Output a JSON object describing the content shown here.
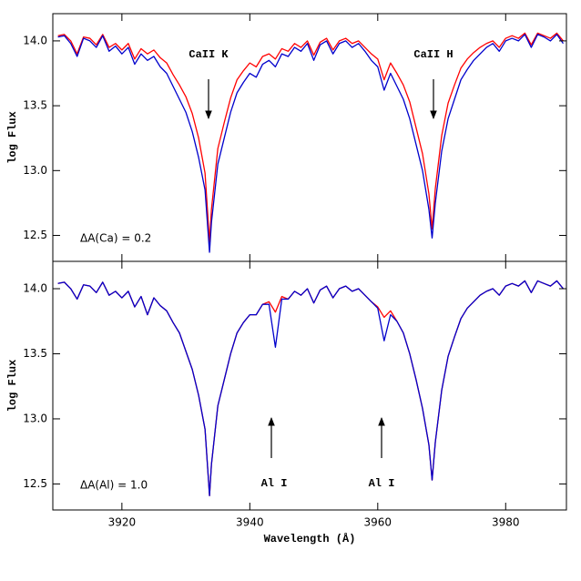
{
  "chart_data": [
    {
      "type": "line",
      "ylabel": "log Flux",
      "annotations": [
        "CaII K",
        "CaII H",
        "ΔA(Ca) = 0.2"
      ],
      "x": [
        3910,
        3911,
        3912,
        3913,
        3914,
        3915,
        3916,
        3917,
        3918,
        3919,
        3920,
        3921,
        3922,
        3923,
        3924,
        3925,
        3926,
        3927,
        3928,
        3929,
        3930,
        3931,
        3932,
        3933,
        3933.7,
        3934,
        3935,
        3936,
        3937,
        3938,
        3939,
        3940,
        3941,
        3942,
        3943,
        3944,
        3945,
        3946,
        3947,
        3948,
        3949,
        3950,
        3951,
        3952,
        3953,
        3954,
        3955,
        3956,
        3957,
        3958,
        3959,
        3960,
        3961,
        3962,
        3963,
        3964,
        3965,
        3966,
        3967,
        3968,
        3968.5,
        3969,
        3970,
        3971,
        3972,
        3973,
        3974,
        3975,
        3976,
        3977,
        3978,
        3979,
        3980,
        3981,
        3982,
        3983,
        3984,
        3985,
        3986,
        3987,
        3988,
        3989
      ],
      "series": [
        {
          "color": "#ff0000",
          "values": [
            14.04,
            14.05,
            14.0,
            13.9,
            14.03,
            14.02,
            13.97,
            14.05,
            13.95,
            13.98,
            13.93,
            13.98,
            13.86,
            13.94,
            13.9,
            13.93,
            13.87,
            13.83,
            13.74,
            13.66,
            13.57,
            13.44,
            13.25,
            12.98,
            12.45,
            12.7,
            13.17,
            13.37,
            13.56,
            13.7,
            13.77,
            13.83,
            13.8,
            13.88,
            13.9,
            13.86,
            13.94,
            13.92,
            13.98,
            13.95,
            14.0,
            13.89,
            13.99,
            14.02,
            13.93,
            14.0,
            14.02,
            13.98,
            14.0,
            13.95,
            13.9,
            13.86,
            13.7,
            13.83,
            13.75,
            13.66,
            13.53,
            13.33,
            13.13,
            12.82,
            12.55,
            12.86,
            13.27,
            13.52,
            13.66,
            13.79,
            13.86,
            13.91,
            13.95,
            13.98,
            14.0,
            13.95,
            14.02,
            14.04,
            14.02,
            14.06,
            13.97,
            14.06,
            14.04,
            14.02,
            14.06,
            14.0
          ]
        },
        {
          "color": "#0000cc",
          "values": [
            14.03,
            14.04,
            13.98,
            13.88,
            14.02,
            14.0,
            13.95,
            14.04,
            13.92,
            13.96,
            13.9,
            13.95,
            13.82,
            13.9,
            13.85,
            13.88,
            13.8,
            13.75,
            13.65,
            13.55,
            13.45,
            13.3,
            13.1,
            12.85,
            12.37,
            12.6,
            13.05,
            13.25,
            13.45,
            13.6,
            13.68,
            13.75,
            13.72,
            13.82,
            13.85,
            13.8,
            13.9,
            13.88,
            13.95,
            13.92,
            13.98,
            13.85,
            13.97,
            14.0,
            13.9,
            13.98,
            14.0,
            13.95,
            13.98,
            13.92,
            13.85,
            13.8,
            13.62,
            13.75,
            13.65,
            13.55,
            13.4,
            13.2,
            13.0,
            12.7,
            12.48,
            12.75,
            13.15,
            13.4,
            13.55,
            13.7,
            13.78,
            13.85,
            13.9,
            13.95,
            13.98,
            13.92,
            14.0,
            14.02,
            14.0,
            14.05,
            13.95,
            14.05,
            14.03,
            14.0,
            14.05,
            13.98
          ]
        }
      ],
      "xlim": [
        3909.2,
        3989.5
      ],
      "xticks": [
        3920,
        3940,
        3960,
        3980
      ],
      "ylim": [
        12.3,
        14.21
      ],
      "yticks": [
        12.5,
        {
          "value": 13,
          "label": "13.0"
        },
        13.5,
        {
          "value": 14,
          "label": "14.0"
        }
      ]
    },
    {
      "type": "line",
      "ylabel": "log Flux",
      "xlabel": "Wavelength (Å)",
      "annotations": [
        "Al I",
        "Al I",
        "ΔA(Al) = 1.0"
      ],
      "x": [
        3910,
        3911,
        3912,
        3913,
        3914,
        3915,
        3916,
        3917,
        3918,
        3919,
        3920,
        3921,
        3922,
        3923,
        3924,
        3925,
        3926,
        3927,
        3928,
        3929,
        3930,
        3931,
        3932,
        3933,
        3933.7,
        3934,
        3935,
        3936,
        3937,
        3938,
        3939,
        3940,
        3941,
        3942,
        3943,
        3944,
        3945,
        3946,
        3947,
        3948,
        3949,
        3950,
        3951,
        3952,
        3953,
        3954,
        3955,
        3956,
        3957,
        3958,
        3959,
        3960,
        3961,
        3962,
        3963,
        3964,
        3965,
        3966,
        3967,
        3968,
        3968.5,
        3969,
        3970,
        3971,
        3972,
        3973,
        3974,
        3975,
        3976,
        3977,
        3978,
        3979,
        3980,
        3981,
        3982,
        3983,
        3984,
        3985,
        3986,
        3987,
        3988,
        3989
      ],
      "series": [
        {
          "color": "#ff0000",
          "values": [
            14.04,
            14.05,
            14.0,
            13.92,
            14.03,
            14.02,
            13.97,
            14.05,
            13.95,
            13.98,
            13.93,
            13.98,
            13.86,
            13.94,
            13.8,
            13.93,
            13.87,
            13.83,
            13.74,
            13.66,
            13.52,
            13.38,
            13.18,
            12.92,
            12.41,
            12.65,
            13.1,
            13.3,
            13.5,
            13.66,
            13.74,
            13.8,
            13.8,
            13.88,
            13.9,
            13.82,
            13.94,
            13.92,
            13.98,
            13.95,
            14.0,
            13.89,
            13.99,
            14.02,
            13.93,
            14.0,
            14.02,
            13.98,
            14.0,
            13.95,
            13.9,
            13.86,
            13.78,
            13.83,
            13.75,
            13.66,
            13.5,
            13.3,
            13.08,
            12.8,
            12.53,
            12.82,
            13.22,
            13.48,
            13.63,
            13.77,
            13.85,
            13.9,
            13.95,
            13.98,
            14.0,
            13.95,
            14.02,
            14.04,
            14.02,
            14.06,
            13.97,
            14.06,
            14.04,
            14.02,
            14.06,
            14.0
          ]
        },
        {
          "color": "#0000cc",
          "values": [
            14.04,
            14.05,
            14.0,
            13.92,
            14.03,
            14.02,
            13.97,
            14.05,
            13.95,
            13.98,
            13.93,
            13.98,
            13.86,
            13.94,
            13.8,
            13.93,
            13.87,
            13.83,
            13.74,
            13.66,
            13.52,
            13.38,
            13.18,
            12.92,
            12.41,
            12.65,
            13.1,
            13.3,
            13.5,
            13.66,
            13.74,
            13.8,
            13.8,
            13.88,
            13.88,
            13.55,
            13.92,
            13.92,
            13.98,
            13.95,
            14.0,
            13.89,
            13.99,
            14.02,
            13.93,
            14.0,
            14.02,
            13.98,
            14.0,
            13.95,
            13.9,
            13.85,
            13.6,
            13.8,
            13.75,
            13.66,
            13.5,
            13.3,
            13.08,
            12.8,
            12.53,
            12.82,
            13.22,
            13.48,
            13.63,
            13.77,
            13.85,
            13.9,
            13.95,
            13.98,
            14.0,
            13.95,
            14.02,
            14.04,
            14.02,
            14.06,
            13.97,
            14.06,
            14.04,
            14.02,
            14.06,
            14.0
          ]
        }
      ],
      "xlim": [
        3909.2,
        3989.5
      ],
      "xticks": [
        3920,
        3940,
        3960,
        3980
      ],
      "ylim": [
        12.3,
        14.21
      ],
      "yticks": [
        12.5,
        {
          "value": 13,
          "label": "13.0"
        },
        13.5,
        {
          "value": 14,
          "label": "14.0"
        }
      ]
    }
  ]
}
